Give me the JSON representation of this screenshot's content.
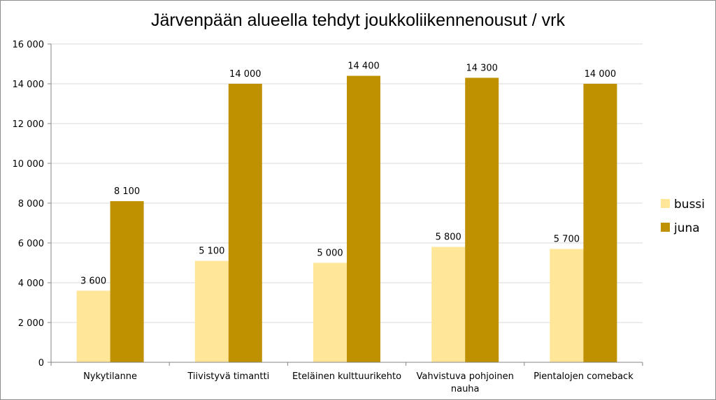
{
  "chart_data": {
    "type": "bar",
    "title": "Järvenpään alueella tehdyt joukkoliikennenousut / vrk",
    "categories": [
      [
        "Nykytilanne"
      ],
      [
        "Tiivistyvä timantti"
      ],
      [
        "Eteläinen kulttuurikehto"
      ],
      [
        "Vahvistuva pohjoinen",
        "nauha"
      ],
      [
        "Pientalojen comeback"
      ]
    ],
    "series": [
      {
        "name": "bussi",
        "color": "#FFE699",
        "values": [
          3600,
          5100,
          5000,
          5800,
          5700
        ],
        "labels": [
          "3 600",
          "5 100",
          "5 000",
          "5 800",
          "5 700"
        ]
      },
      {
        "name": "juna",
        "color": "#BF9000",
        "values": [
          8100,
          14000,
          14400,
          14300,
          14000
        ],
        "labels": [
          "8 100",
          "14 000",
          "14 400",
          "14 300",
          "14 000"
        ]
      }
    ],
    "ylim": [
      0,
      16000
    ],
    "yticks": [
      0,
      2000,
      4000,
      6000,
      8000,
      10000,
      12000,
      14000,
      16000
    ],
    "ytick_labels": [
      "0",
      "2 000",
      "4 000",
      "6 000",
      "8 000",
      "10 000",
      "12 000",
      "14 000",
      "16 000"
    ],
    "xlabel": "",
    "ylabel": "",
    "grid": true,
    "legend_position": "right"
  }
}
